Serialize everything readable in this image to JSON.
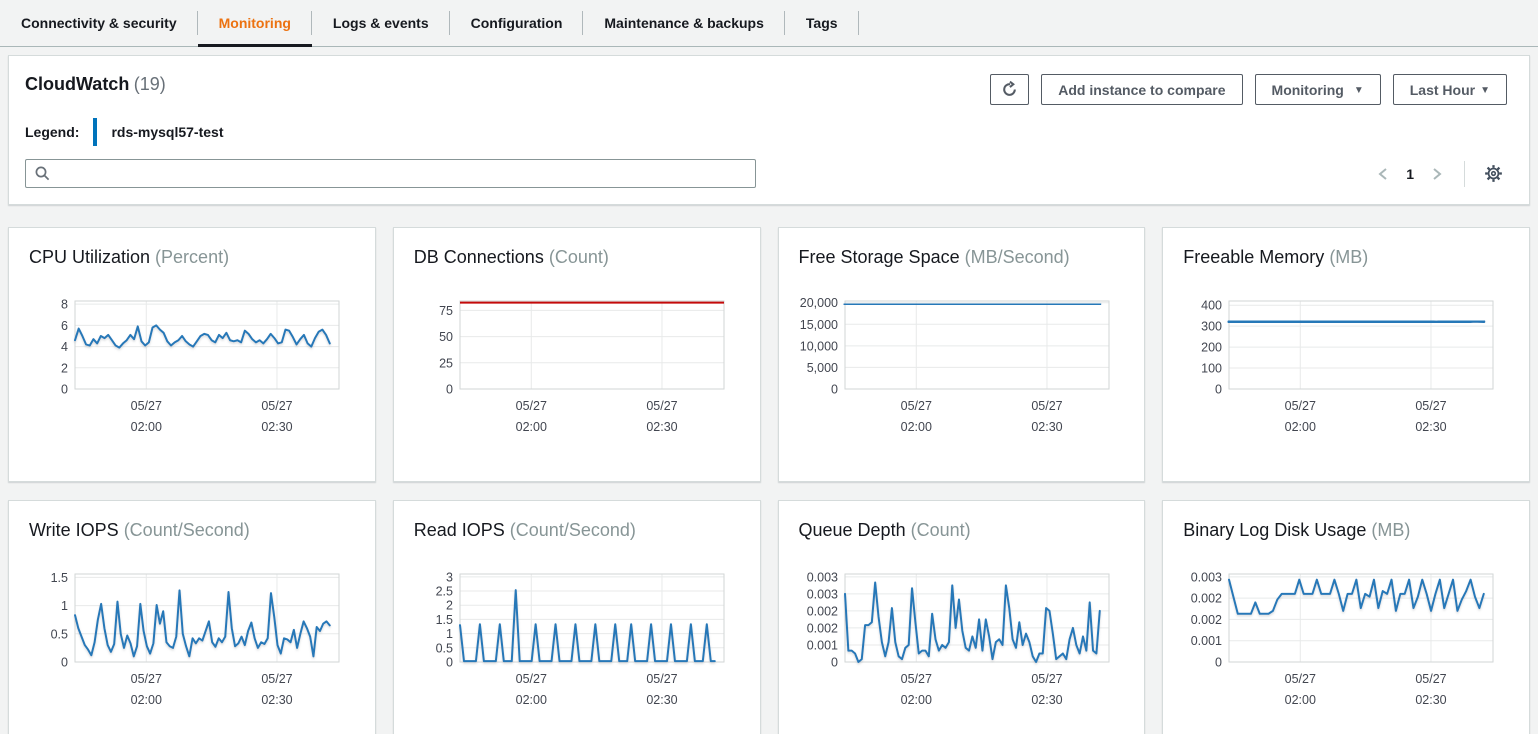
{
  "tabs": [
    {
      "label": "Connectivity & security",
      "active": false
    },
    {
      "label": "Monitoring",
      "active": true
    },
    {
      "label": "Logs & events",
      "active": false
    },
    {
      "label": "Configuration",
      "active": false
    },
    {
      "label": "Maintenance & backups",
      "active": false
    },
    {
      "label": "Tags",
      "active": false
    }
  ],
  "panel": {
    "title": "CloudWatch",
    "count": "(19)",
    "legend_label": "Legend:",
    "legend_instance": "rds-mysql57-test",
    "search_placeholder": "",
    "search_value": "",
    "buttons": {
      "refresh_icon": "refresh-icon",
      "add_instance": "Add instance to compare",
      "monitoring": "Monitoring",
      "time_range": "Last Hour"
    },
    "pagination": {
      "current_page": "1"
    }
  },
  "icons": {
    "caret_down": "▼"
  },
  "colors": {
    "accent_blue": "#0073bb",
    "chart_blue": "#2878b8",
    "chart_red": "#c40a0a",
    "active_tab_orange": "#ec7211"
  },
  "charts": [
    {
      "title": "CPU Utilization",
      "unit": "(Percent)",
      "type": "line",
      "ymax": 8.3,
      "ytick_vals": [
        0,
        2,
        4,
        6,
        8
      ],
      "ytick_labels": [
        "0",
        "2",
        "4",
        "6",
        "8"
      ],
      "xticks": [
        {
          "frac": 0.27,
          "l1": "05/27",
          "l2": "02:00"
        },
        {
          "frac": 0.765,
          "l1": "05/27",
          "l2": "02:30"
        }
      ],
      "line_color": "#2878b8",
      "line_width": 2,
      "extra_lines": [],
      "values": [
        4.6,
        5.7,
        5.0,
        4.2,
        4.1,
        4.7,
        4.3,
        5.0,
        4.8,
        5.1,
        4.6,
        4.1,
        3.9,
        4.3,
        4.6,
        5.1,
        4.7,
        5.9,
        4.5,
        4.1,
        4.4,
        5.8,
        6.0,
        5.6,
        5.3,
        4.5,
        4.1,
        4.4,
        4.6,
        5.0,
        4.5,
        4.2,
        4.0,
        4.5,
        5.0,
        5.2,
        5.1,
        4.6,
        4.4,
        5.1,
        4.8,
        5.3,
        4.6,
        4.5,
        4.6,
        4.4,
        5.5,
        5.2,
        4.7,
        4.4,
        4.6,
        4.3,
        4.7,
        5.2,
        4.8,
        4.3,
        4.4,
        5.6,
        5.5,
        4.9,
        4.2,
        4.7,
        5.1,
        4.3,
        4.0,
        4.8,
        5.4,
        5.6,
        5.1,
        4.3
      ]
    },
    {
      "title": "DB Connections",
      "unit": "(Count)",
      "type": "line",
      "ymax": 84,
      "ytick_vals": [
        0,
        25,
        50,
        75
      ],
      "ytick_labels": [
        "0",
        "25",
        "50",
        "75"
      ],
      "xticks": [
        {
          "frac": 0.27,
          "l1": "05/27",
          "l2": "02:00"
        },
        {
          "frac": 0.765,
          "l1": "05/27",
          "l2": "02:30"
        }
      ],
      "line_color": "#2878b8",
      "line_width": 3,
      "extra_lines": [
        {
          "value": 82.5,
          "color": "#c40a0a",
          "width": 2
        }
      ],
      "values": [
        0.5,
        0.5,
        0.5,
        0.5,
        0.5,
        0.5,
        0.5,
        0.5
      ]
    },
    {
      "title": "Free Storage Space",
      "unit": "(MB/Second)",
      "type": "line",
      "ymax": 20400,
      "ytick_vals": [
        0,
        5000,
        10000,
        15000,
        20000
      ],
      "ytick_labels": [
        "0",
        "5,000",
        "10,000",
        "15,000",
        "20,000"
      ],
      "xticks": [
        {
          "frac": 0.27,
          "l1": "05/27",
          "l2": "02:00"
        },
        {
          "frac": 0.765,
          "l1": "05/27",
          "l2": "02:30"
        }
      ],
      "line_color": "#2878b8",
      "line_width": 3,
      "extra_lines": [],
      "values": [
        19650,
        19700,
        19650,
        19700,
        19680,
        19650,
        19700,
        19680,
        19700,
        19650,
        19700,
        19680,
        19650,
        19700,
        19700,
        19750
      ]
    },
    {
      "title": "Freeable Memory",
      "unit": "(MB)",
      "type": "line",
      "ymax": 420,
      "ytick_vals": [
        0,
        100,
        200,
        300,
        400
      ],
      "ytick_labels": [
        "0",
        "100",
        "200",
        "300",
        "400"
      ],
      "xticks": [
        {
          "frac": 0.27,
          "l1": "05/27",
          "l2": "02:00"
        },
        {
          "frac": 0.765,
          "l1": "05/27",
          "l2": "02:30"
        }
      ],
      "line_color": "#2878b8",
      "line_width": 3,
      "extra_lines": [],
      "values": [
        321,
        322,
        320,
        322,
        321,
        323,
        320,
        321,
        322,
        320,
        323,
        321,
        320,
        322,
        321,
        320,
        322,
        323,
        321,
        320,
        322,
        321,
        319,
        322,
        321,
        320,
        324,
        322
      ]
    },
    {
      "title": "Write IOPS",
      "unit": "(Count/Second)",
      "type": "line",
      "ymax": 1.56,
      "ytick_vals": [
        0,
        0.5,
        1,
        1.5
      ],
      "ytick_labels": [
        "0",
        "0.5",
        "1",
        "1.5"
      ],
      "xticks": [
        {
          "frac": 0.27,
          "l1": "05/27",
          "l2": "02:00"
        },
        {
          "frac": 0.765,
          "l1": "05/27",
          "l2": "02:30"
        }
      ],
      "line_color": "#2878b8",
      "line_width": 2,
      "extra_lines": [],
      "values": [
        0.83,
        0.6,
        0.45,
        0.3,
        0.22,
        0.12,
        0.35,
        0.75,
        1.03,
        0.6,
        0.3,
        0.18,
        0.32,
        1.07,
        0.5,
        0.25,
        0.47,
        0.33,
        0.1,
        0.28,
        1.03,
        0.55,
        0.28,
        0.15,
        0.33,
        1.01,
        0.68,
        0.9,
        0.35,
        0.28,
        0.25,
        0.45,
        1.27,
        0.5,
        0.28,
        0.1,
        0.42,
        0.33,
        0.42,
        0.38,
        0.55,
        0.72,
        0.35,
        0.27,
        0.42,
        0.35,
        0.45,
        1.24,
        0.6,
        0.28,
        0.33,
        0.45,
        0.3,
        0.55,
        0.7,
        0.42,
        0.25,
        0.35,
        0.32,
        0.42,
        1.22,
        0.8,
        0.3,
        0.15,
        0.42,
        0.4,
        0.35,
        0.57,
        0.25,
        0.5,
        0.72,
        0.6,
        0.45,
        0.1,
        0.62,
        0.55,
        0.68,
        0.72,
        0.65
      ]
    },
    {
      "title": "Read IOPS",
      "unit": "(Count/Second)",
      "type": "line",
      "ymax": 3.1,
      "ytick_vals": [
        0,
        0.5,
        1,
        1.5,
        2,
        2.5,
        3
      ],
      "ytick_labels": [
        "0",
        "0.5",
        "1",
        "1.5",
        "2",
        "2.5",
        "3"
      ],
      "xticks": [
        {
          "frac": 0.27,
          "l1": "05/27",
          "l2": "02:00"
        },
        {
          "frac": 0.765,
          "l1": "05/27",
          "l2": "02:30"
        }
      ],
      "line_color": "#2878b8",
      "line_width": 2,
      "extra_lines": [],
      "values": [
        1.3,
        0.03,
        0.03,
        0.03,
        0.03,
        1.33,
        0.03,
        0.03,
        0.03,
        0.03,
        1.33,
        0.03,
        0.03,
        0.03,
        2.53,
        0.03,
        0.03,
        0.03,
        0.03,
        1.33,
        0.03,
        0.03,
        0.03,
        0.03,
        1.33,
        0.03,
        0.03,
        0.03,
        0.03,
        1.33,
        0.03,
        0.03,
        0.03,
        0.03,
        1.33,
        0.03,
        0.03,
        0.03,
        0.03,
        1.33,
        0.03,
        0.03,
        0.03,
        1.33,
        0.03,
        0.03,
        0.03,
        0.03,
        1.33,
        0.03,
        0.03,
        0.03,
        0.03,
        1.33,
        0.03,
        0.03,
        0.03,
        0.03,
        1.33,
        0.03,
        0.03,
        0.03,
        1.33,
        0.03,
        0.03
      ]
    },
    {
      "title": "Queue Depth",
      "unit": "(Count)",
      "type": "line",
      "ymax": 0.0031,
      "ytick_vals": [
        0,
        0.0006,
        0.0012,
        0.0018,
        0.0024,
        0.003
      ],
      "ytick_labels": [
        "0",
        "0.001",
        "0.002",
        "0.002",
        "0.003",
        "0.003"
      ],
      "xticks": [
        {
          "frac": 0.27,
          "l1": "05/27",
          "l2": "02:00"
        },
        {
          "frac": 0.765,
          "l1": "05/27",
          "l2": "02:30"
        }
      ],
      "line_color": "#2878b8",
      "line_width": 2,
      "extra_lines": [],
      "values": [
        0.0024,
        0.0004,
        0.0004,
        0.0003,
        0,
        0.0001,
        0.0013,
        0.0013,
        0.0014,
        0.0028,
        0.0016,
        0.0007,
        0.0002,
        0.0007,
        0.0019,
        0.0007,
        0.0002,
        0.0001,
        0.0005,
        0.0006,
        0.0026,
        0.0014,
        0.0003,
        0.0004,
        0.0004,
        0.0002,
        0.0017,
        0.0008,
        0.0004,
        0.0006,
        0.0005,
        0.0007,
        0.0027,
        0.0012,
        0.0022,
        0.0011,
        0.0005,
        0.0004,
        0.0009,
        0.0005,
        0.0015,
        0.0004,
        0.0015,
        0.0009,
        0.0001,
        0.0007,
        0.0008,
        0.0006,
        0.0027,
        0.0019,
        0.0008,
        0.0005,
        0.0014,
        0.0006,
        0.001,
        0.0007,
        0.0002,
        0,
        0.0003,
        0.0003,
        0.0019,
        0.0018,
        0.001,
        0.0001,
        0.0002,
        0.0003,
        0.0001,
        0.0008,
        0.0012,
        0.0006,
        0.0003,
        0.0009,
        0.0004,
        0.0021,
        0.0004,
        0.0003,
        0.0018
      ]
    },
    {
      "title": "Binary Log Disk Usage",
      "unit": "(MB)",
      "type": "line",
      "ymax": 0.0031,
      "ytick_vals": [
        0,
        0.00075,
        0.0015,
        0.00225,
        0.003
      ],
      "ytick_labels": [
        "0",
        "0.001",
        "0.002",
        "0.002",
        "0.003"
      ],
      "xticks": [
        {
          "frac": 0.27,
          "l1": "05/27",
          "l2": "02:00"
        },
        {
          "frac": 0.765,
          "l1": "05/27",
          "l2": "02:30"
        }
      ],
      "line_color": "#2878b8",
      "line_width": 2,
      "extra_lines": [],
      "values": [
        0.0029,
        0.0023,
        0.0017,
        0.0017,
        0.0017,
        0.0017,
        0.0021,
        0.0017,
        0.0017,
        0.0017,
        0.0018,
        0.0022,
        0.0024,
        0.0024,
        0.0024,
        0.0024,
        0.0029,
        0.0024,
        0.0024,
        0.0024,
        0.0029,
        0.0024,
        0.0024,
        0.0024,
        0.0029,
        0.0024,
        0.0018,
        0.0024,
        0.0024,
        0.0029,
        0.0019,
        0.0024,
        0.0023,
        0.0029,
        0.0019,
        0.0025,
        0.0024,
        0.0029,
        0.0018,
        0.0024,
        0.0024,
        0.0029,
        0.0019,
        0.0023,
        0.0029,
        0.0024,
        0.0018,
        0.0024,
        0.0029,
        0.0019,
        0.0024,
        0.0029,
        0.0018,
        0.0022,
        0.0025,
        0.0029,
        0.0023,
        0.0019,
        0.0024
      ]
    }
  ]
}
